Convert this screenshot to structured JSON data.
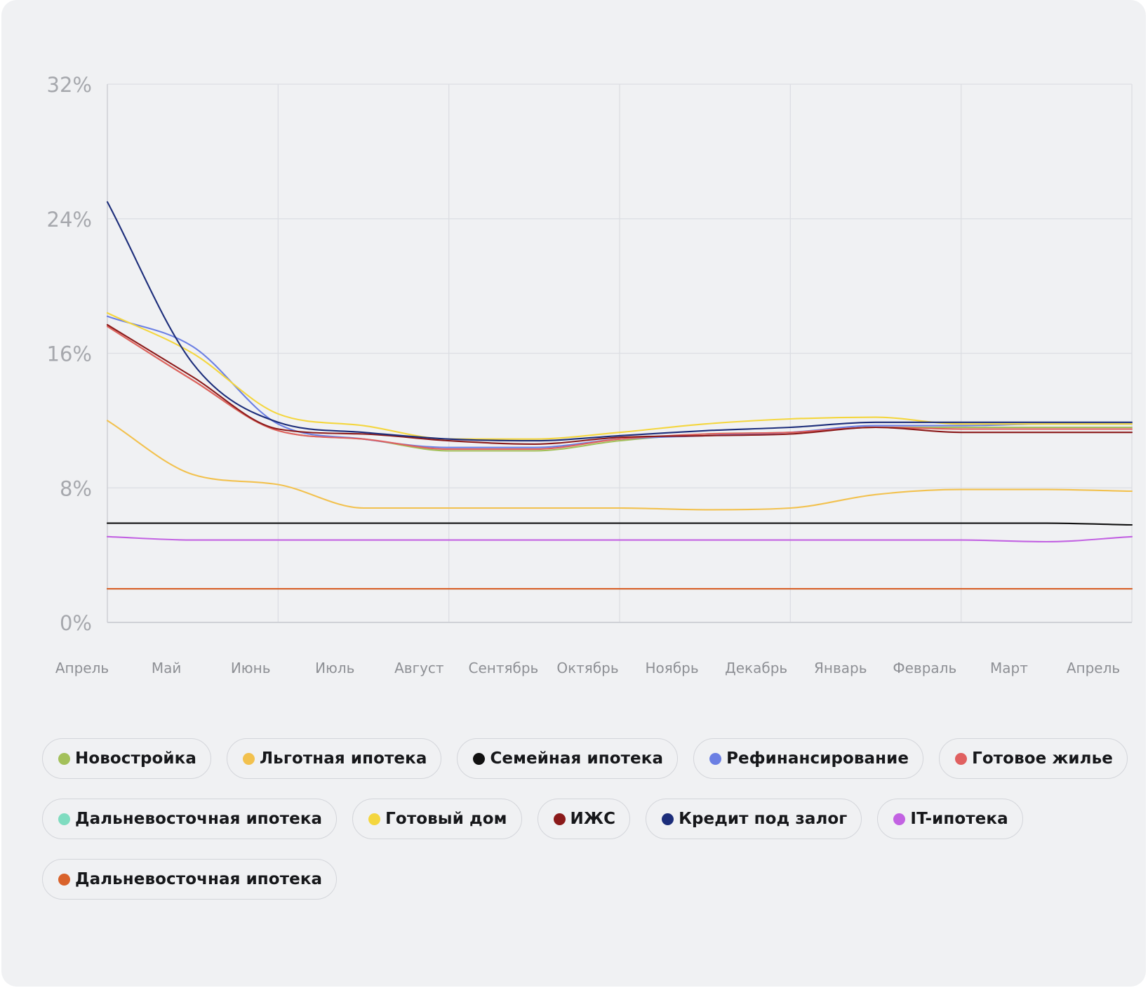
{
  "chart_data": {
    "type": "line",
    "y_unit": "%",
    "ylim": [
      0,
      32
    ],
    "y_ticks": [
      "0%",
      "8%",
      "16%",
      "24%",
      "32%"
    ],
    "x": [
      "Апрель",
      "Май",
      "Июнь",
      "Июль",
      "Август",
      "Сентябрь",
      "Октябрь",
      "Ноябрь",
      "Декабрь",
      "Январь",
      "Февраль",
      "Март",
      "Апрель"
    ],
    "grid": true,
    "legend_position": "bottom",
    "series": [
      {
        "name": "Новостройка",
        "color": "#a3c05a",
        "values": [
          17.6,
          14.4,
          11.4,
          10.9,
          10.2,
          10.2,
          10.8,
          11.2,
          11.3,
          11.6,
          11.6,
          11.6,
          11.6
        ]
      },
      {
        "name": "Льготная ипотека",
        "color": "#f2c14e",
        "values": [
          12.0,
          8.8,
          8.2,
          6.8,
          6.8,
          6.8,
          6.8,
          6.7,
          6.8,
          7.6,
          7.9,
          7.9,
          7.8
        ]
      },
      {
        "name": "Семейная ипотека",
        "color": "#111111",
        "values": [
          5.9,
          5.9,
          5.9,
          5.9,
          5.9,
          5.9,
          5.9,
          5.9,
          5.9,
          5.9,
          5.9,
          5.9,
          5.8
        ]
      },
      {
        "name": "Рефинансирование",
        "color": "#6b7fe3",
        "values": [
          18.2,
          16.4,
          11.8,
          10.9,
          10.4,
          10.4,
          10.9,
          11.1,
          11.3,
          11.7,
          11.7,
          11.8,
          11.8
        ]
      },
      {
        "name": "Готовое жилье",
        "color": "#e06060",
        "values": [
          17.6,
          14.4,
          11.4,
          10.9,
          10.3,
          10.3,
          10.9,
          11.2,
          11.3,
          11.6,
          11.5,
          11.5,
          11.5
        ]
      },
      {
        "name": "Дальневосточная ипотека",
        "color": "#7fdcc0",
        "values": [
          2.0,
          2.0,
          2.0,
          2.0,
          2.0,
          2.0,
          2.0,
          2.0,
          2.0,
          2.0,
          2.0,
          2.0,
          2.0
        ]
      },
      {
        "name": "Готовый дом",
        "color": "#f4d63e",
        "values": [
          18.4,
          16.0,
          12.4,
          11.7,
          10.9,
          10.9,
          11.3,
          11.8,
          12.1,
          12.2,
          11.8,
          11.8,
          11.8
        ]
      },
      {
        "name": "ИЖС",
        "color": "#8b1a1a",
        "values": [
          17.7,
          14.6,
          11.5,
          11.2,
          10.8,
          10.6,
          11.0,
          11.1,
          11.2,
          11.6,
          11.3,
          11.3,
          11.3
        ]
      },
      {
        "name": "Кредит под залог",
        "color": "#1c2d7a",
        "values": [
          25.0,
          15.4,
          11.9,
          11.3,
          10.9,
          10.8,
          11.1,
          11.4,
          11.6,
          11.9,
          11.9,
          11.9,
          11.9
        ]
      },
      {
        "name": "IT-ипотека",
        "color": "#c262e2",
        "values": [
          5.1,
          4.9,
          4.9,
          4.9,
          4.9,
          4.9,
          4.9,
          4.9,
          4.9,
          4.9,
          4.9,
          4.8,
          5.1
        ]
      },
      {
        "name": "Дальневосточная ипотека",
        "color": "#d9622b",
        "values": [
          2.0,
          2.0,
          2.0,
          2.0,
          2.0,
          2.0,
          2.0,
          2.0,
          2.0,
          2.0,
          2.0,
          2.0,
          2.0
        ]
      }
    ]
  }
}
